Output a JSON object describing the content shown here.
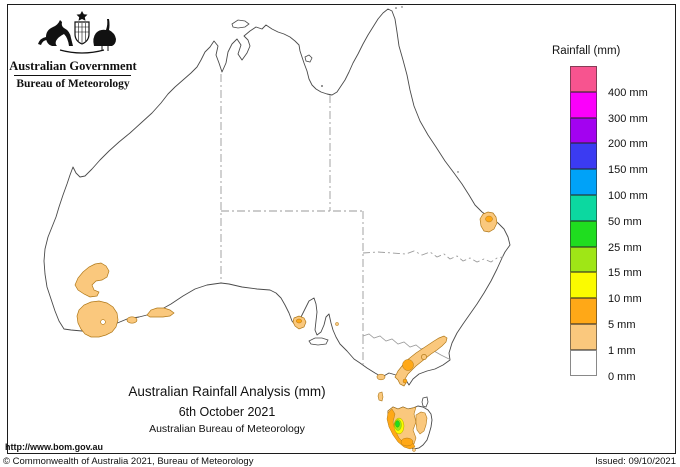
{
  "branding": {
    "government": "Australian Government",
    "bureau": "Bureau of Meteorology"
  },
  "legend": {
    "title": "Rainfall (mm)",
    "entries": [
      {
        "color": "#F7548F",
        "label": "400 mm"
      },
      {
        "color": "#FB00FB",
        "label": "300 mm"
      },
      {
        "color": "#A302F0",
        "label": "200 mm"
      },
      {
        "color": "#3B3BF2",
        "label": "150 mm"
      },
      {
        "color": "#00A2F8",
        "label": "100 mm"
      },
      {
        "color": "#0CD8A0",
        "label": "50 mm"
      },
      {
        "color": "#1FDD1F",
        "label": "25 mm"
      },
      {
        "color": "#9FE616",
        "label": "15 mm"
      },
      {
        "color": "#FBFB00",
        "label": "10 mm"
      },
      {
        "color": "#FFA817",
        "label": "5 mm"
      },
      {
        "color": "#FAC87D",
        "label": "1 mm"
      },
      {
        "color": "#FFFFFF",
        "label": "0 mm"
      }
    ]
  },
  "caption": {
    "title": "Australian Rainfall Analysis (mm)",
    "date": "6th October 2021",
    "org": "Australian Bureau of Meteorology"
  },
  "footer": {
    "url": "http://www.bom.gov.au",
    "copyright": "© Commonwealth of Australia 2021, Bureau of Meteorology",
    "issued": "Issued: 09/10/2021"
  },
  "map": {
    "rain_colors": {
      "mm1": "#FAC87D",
      "mm5": "#FFA817",
      "mm10": "#FBFB00",
      "mm15": "#9FE616",
      "mm25": "#1FDD1F"
    }
  }
}
